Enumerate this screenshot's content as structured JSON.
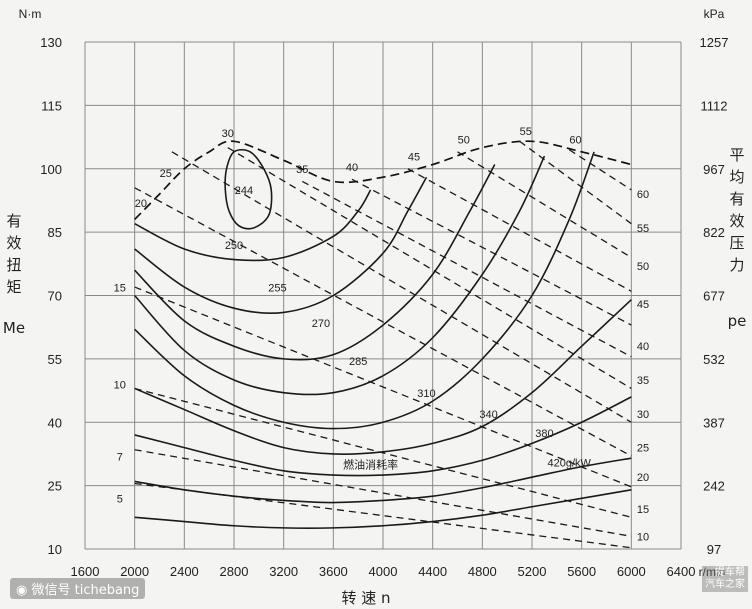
{
  "chart_data": {
    "type": "line",
    "x_unit": "r/min",
    "y_unit_left": "N·m",
    "y_unit_right": "kPa",
    "xlabel": "转 速 n",
    "ylabel_left": "有效扭矩",
    "ylabel_left_symbol": "Me",
    "ylabel_right": "平均有效压力",
    "ylabel_right_symbol": "pe",
    "xlim": [
      1600,
      6400
    ],
    "ylim": [
      10,
      130
    ],
    "grid": true,
    "x_ticks": [
      1600,
      2000,
      2400,
      2800,
      3200,
      3600,
      4000,
      4400,
      4800,
      5200,
      5600,
      6000,
      6400
    ],
    "y_ticks_left": [
      10,
      25,
      40,
      55,
      70,
      85,
      100,
      115,
      130
    ],
    "y_ticks_right": [
      97,
      242,
      387,
      532,
      677,
      822,
      967,
      1112,
      1257
    ],
    "annotation_label": "燃油消耗率",
    "fuel_unit_label": "420g/kW",
    "full_load_curve": {
      "x": [
        2000,
        2200,
        2400,
        2600,
        2800,
        3200,
        3600,
        4000,
        4400,
        4800,
        5200,
        5600,
        6000
      ],
      "y": [
        88,
        94,
        100,
        104,
        106.5,
        102,
        97,
        98,
        101,
        105,
        106.5,
        104,
        101
      ]
    },
    "fuel_contours": [
      {
        "label": "244",
        "closed": true,
        "x": [
          2800,
          2740,
          2730,
          2760,
          2840,
          2960,
          3080,
          3100,
          3040,
          2930,
          2800
        ],
        "y": [
          104,
          100,
          95,
          90,
          86.5,
          86,
          89,
          95,
          100,
          104,
          104
        ]
      },
      {
        "label": "250",
        "x": [
          2000,
          2400,
          2800,
          3200,
          3600,
          3800,
          3900
        ],
        "y": [
          87,
          81,
          78.5,
          79,
          84,
          90,
          95
        ]
      },
      {
        "label": "255",
        "x": [
          2000,
          2400,
          2800,
          3200,
          3600,
          4000,
          4200,
          4350
        ],
        "y": [
          81,
          72,
          67,
          66,
          70,
          80,
          90,
          98
        ]
      },
      {
        "label": "270",
        "x": [
          2000,
          2400,
          2800,
          3200,
          3600,
          4000,
          4400,
          4700,
          4900
        ],
        "y": [
          76,
          64,
          58,
          55,
          56,
          63,
          75,
          90,
          101
        ]
      },
      {
        "label": "285",
        "x": [
          2000,
          2400,
          2800,
          3200,
          3600,
          4000,
          4400,
          4800,
          5100,
          5300
        ],
        "y": [
          70,
          57,
          50,
          47,
          47,
          51,
          60,
          75,
          90,
          103
        ]
      },
      {
        "label": "310",
        "x": [
          2000,
          2400,
          2800,
          3200,
          3600,
          4000,
          4400,
          4800,
          5200,
          5500,
          5700
        ],
        "y": [
          62,
          51,
          44,
          40,
          38.5,
          40,
          45,
          55,
          70,
          88,
          104
        ]
      },
      {
        "label": "340",
        "x": [
          2000,
          2400,
          2800,
          3200,
          3600,
          4000,
          4400,
          4800,
          5200,
          5600,
          6000
        ],
        "y": [
          48,
          43,
          38,
          34,
          32.5,
          33,
          35,
          39,
          47,
          58,
          69
        ]
      },
      {
        "label": "380",
        "x": [
          2000,
          2400,
          2800,
          3200,
          3600,
          4000,
          4400,
          4800,
          5200,
          5600,
          6000
        ],
        "y": [
          37,
          34,
          31,
          28.5,
          27.5,
          27.5,
          28.5,
          31,
          35,
          40,
          46
        ]
      },
      {
        "label": "420g/kW",
        "x": [
          2000,
          2400,
          2800,
          3200,
          3600,
          4000,
          4400,
          4800,
          5200,
          5600,
          6000
        ],
        "y": [
          26,
          24,
          22.5,
          21.5,
          21,
          21.5,
          22.5,
          24.5,
          27,
          29.5,
          31.5
        ]
      },
      {
        "label": "",
        "x": [
          2000,
          2400,
          2800,
          3200,
          3600,
          4000,
          4400,
          4800,
          5200,
          5600,
          6000
        ],
        "y": [
          17.5,
          16.5,
          15.5,
          15,
          15,
          15.5,
          16.5,
          18,
          20,
          22,
          24
        ]
      }
    ],
    "power_lines": [
      {
        "label": "5",
        "x": [
          2000,
          6000
        ],
        "y": [
          25.5,
          10.3
        ]
      },
      {
        "label": "7",
        "x": [
          2000,
          6000
        ],
        "y": [
          33.5,
          13
        ]
      },
      {
        "label": "10",
        "x": [
          2000,
          6000
        ],
        "y": [
          48,
          17.5
        ]
      },
      {
        "label": "15",
        "x": [
          2000,
          6000
        ],
        "y": [
          72,
          24.7
        ]
      },
      {
        "label": "20",
        "x": [
          2000,
          6000
        ],
        "y": [
          95.5,
          32
        ]
      },
      {
        "label": "25",
        "x": [
          2300,
          6000
        ],
        "y": [
          104,
          40
        ]
      },
      {
        "label": "30",
        "x": [
          2750,
          6000
        ],
        "y": [
          105,
          48
        ]
      },
      {
        "label": "35",
        "x": [
          3350,
          6000
        ],
        "y": [
          97,
          55.5
        ]
      },
      {
        "label": "40",
        "x": [
          3750,
          6000
        ],
        "y": [
          97.5,
          63
        ]
      },
      {
        "label": "45",
        "x": [
          4200,
          6000
        ],
        "y": [
          100,
          71
        ]
      },
      {
        "label": "50",
        "x": [
          4600,
          6000
        ],
        "y": [
          104,
          79
        ]
      },
      {
        "label": "55",
        "x": [
          5100,
          6000
        ],
        "y": [
          106.5,
          87
        ]
      },
      {
        "label": "60",
        "x": [
          5500,
          6000
        ],
        "y": [
          104.5,
          95
        ]
      }
    ],
    "power_labels_left": [
      "5",
      "7",
      "10",
      "15",
      "20",
      "25",
      "30",
      "35",
      "40",
      "45",
      "50",
      "55",
      "60"
    ],
    "power_labels_right": [
      "10",
      "15",
      "20",
      "25",
      "30",
      "35",
      "40",
      "45",
      "50",
      "55",
      "60"
    ]
  },
  "watermark": {
    "left": "微信号 tichebang",
    "right_line1": "提车帮",
    "right_line2": "汽车之家"
  }
}
